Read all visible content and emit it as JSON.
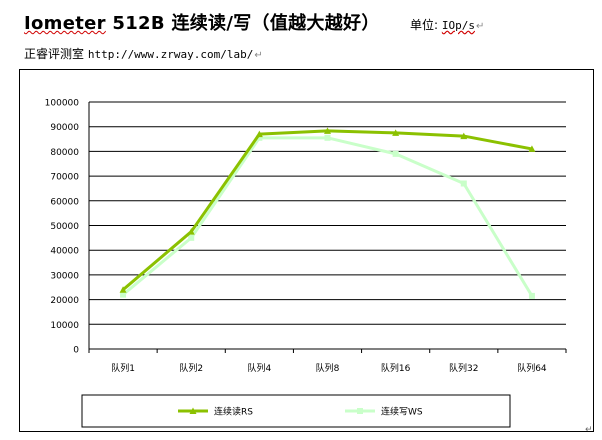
{
  "header": {
    "title_prefix": "Iometer",
    "title_rest": " 512B 连续读/写（值越大越好）",
    "unit_label": "单位: ",
    "unit_value": "IOp/s",
    "para_mark": "↵",
    "subtitle_text": "正睿评测室 ",
    "subtitle_url": "http://www.zrway.com/lab/"
  },
  "chart_data": {
    "type": "line",
    "categories": [
      "队列1",
      "队列2",
      "队列4",
      "队列8",
      "队列16",
      "队列32",
      "队列64"
    ],
    "ylim": [
      0,
      100000
    ],
    "yticks": [
      0,
      10000,
      20000,
      30000,
      40000,
      50000,
      60000,
      70000,
      80000,
      90000,
      100000
    ],
    "grid": true,
    "legend_position": "bottom",
    "series": [
      {
        "name": "连续读RS",
        "values": [
          24000,
          47500,
          87000,
          88300,
          87500,
          86200,
          81000
        ],
        "color": "#8bc100",
        "marker": "triangle"
      },
      {
        "name": "连续写WS",
        "values": [
          22000,
          45000,
          85500,
          85500,
          79000,
          67000,
          21500
        ],
        "color": "#c9ffc9",
        "marker": "square"
      }
    ]
  }
}
